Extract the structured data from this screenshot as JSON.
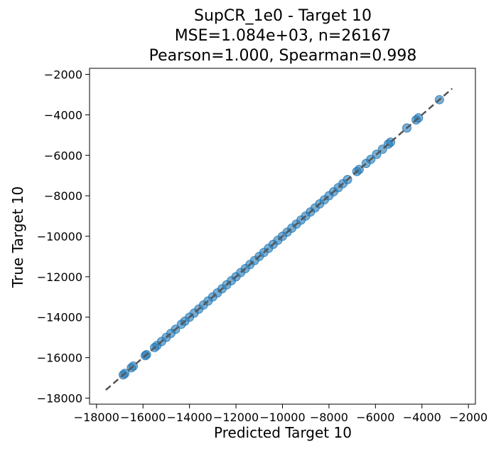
{
  "chart_data": {
    "type": "scatter",
    "title_lines": [
      "SupCR_1e0 - Target 10",
      "MSE=1.084e+03, n=26167",
      "Pearson=1.000, Spearman=0.998"
    ],
    "xlabel": "Predicted Target 10",
    "ylabel": "True Target 10",
    "xlim": [
      -18300,
      -1700
    ],
    "ylim": [
      -18300,
      -1700
    ],
    "xticks": [
      -18000,
      -16000,
      -14000,
      -12000,
      -10000,
      -8000,
      -6000,
      -4000,
      -2000
    ],
    "yticks": [
      -18000,
      -16000,
      -14000,
      -12000,
      -10000,
      -8000,
      -6000,
      -4000,
      -2000
    ],
    "tick_labels": [
      "−18000",
      "−16000",
      "−14000",
      "−12000",
      "−10000",
      "−8000",
      "−6000",
      "−4000",
      "−2000"
    ],
    "grid": false,
    "reference_line": {
      "from": [
        -17600,
        -17600
      ],
      "to": [
        -2700,
        -2700
      ],
      "style": "dashed",
      "color": "#555555"
    },
    "point_color": "#1f77b4",
    "points": {
      "x": [
        -16850,
        -16780,
        -16500,
        -16420,
        -15900,
        -15850,
        -15500,
        -15400,
        -15200,
        -15000,
        -14800,
        -14600,
        -14350,
        -14200,
        -14000,
        -13800,
        -13600,
        -13400,
        -13200,
        -13000,
        -12800,
        -12600,
        -12400,
        -12200,
        -12000,
        -11800,
        -11600,
        -11400,
        -11200,
        -11000,
        -10800,
        -10600,
        -10400,
        -10200,
        -10000,
        -9800,
        -9600,
        -9400,
        -9200,
        -9000,
        -8800,
        -8600,
        -8400,
        -8200,
        -8000,
        -7800,
        -7600,
        -7400,
        -7200,
        -6800,
        -6700,
        -6400,
        -6200,
        -5950,
        -5700,
        -5450,
        -5350,
        -4650,
        -4250,
        -4150,
        -3250
      ],
      "y": [
        -16850,
        -16780,
        -16500,
        -16420,
        -15900,
        -15850,
        -15500,
        -15400,
        -15200,
        -15000,
        -14800,
        -14600,
        -14350,
        -14200,
        -14000,
        -13800,
        -13600,
        -13400,
        -13200,
        -13000,
        -12800,
        -12600,
        -12400,
        -12200,
        -12000,
        -11800,
        -11600,
        -11400,
        -11200,
        -11000,
        -10800,
        -10600,
        -10400,
        -10200,
        -10000,
        -9800,
        -9600,
        -9400,
        -9200,
        -9000,
        -8800,
        -8600,
        -8400,
        -8200,
        -8000,
        -7800,
        -7600,
        -7400,
        -7200,
        -6800,
        -6700,
        -6400,
        -6200,
        -5950,
        -5700,
        -5450,
        -5350,
        -4650,
        -4250,
        -4150,
        -3250
      ]
    }
  }
}
